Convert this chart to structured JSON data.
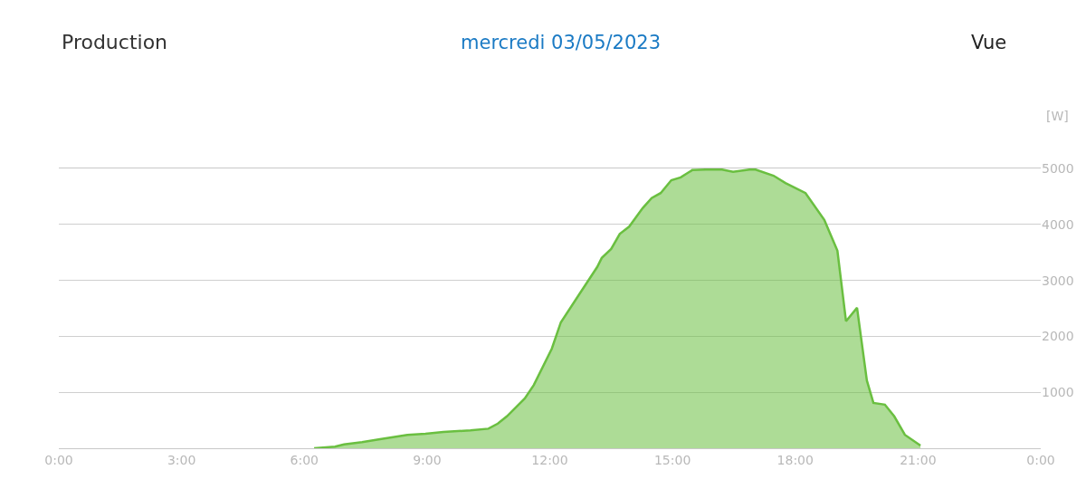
{
  "chart_data": {
    "type": "area",
    "title": "Production",
    "subtitle": "mercredi 03/05/2023",
    "annotations": [
      "Vue"
    ],
    "ylabel": "[W]",
    "x": [
      6.24,
      6.75,
      6.97,
      7.41,
      7.85,
      8.52,
      8.96,
      9.4,
      10.06,
      10.5,
      10.73,
      10.95,
      11.17,
      11.39,
      11.61,
      12.05,
      12.27,
      12.72,
      13.16,
      13.27,
      13.5,
      13.71,
      13.94,
      14.27,
      14.49,
      14.71,
      14.97,
      15.2,
      15.48,
      15.81,
      16.21,
      16.48,
      16.88,
      17.03,
      17.47,
      17.76,
      18.25,
      18.71,
      19.03,
      19.24,
      19.51,
      19.75,
      19.91,
      20.19,
      20.42,
      20.68,
      21.06
    ],
    "series": [
      {
        "color": "#6abf40",
        "values": [
          0,
          30,
          70,
          110,
          160,
          240,
          260,
          290,
          320,
          350,
          440,
          570,
          730,
          890,
          1130,
          1780,
          2250,
          2750,
          3240,
          3400,
          3560,
          3830,
          3960,
          4290,
          4470,
          4560,
          4790,
          4840,
          4970,
          4980,
          4980,
          4940,
          4980,
          4980,
          4870,
          4740,
          4560,
          4080,
          3530,
          2270,
          2510,
          1210,
          810,
          780,
          570,
          240,
          50
        ]
      }
    ],
    "xlim": [
      0,
      24
    ],
    "xticks": [
      {
        "value": 0,
        "label": "0:00"
      },
      {
        "value": 3,
        "label": "3:00"
      },
      {
        "value": 6,
        "label": "6:00"
      },
      {
        "value": 9,
        "label": "9:00"
      },
      {
        "value": 12,
        "label": "12:00"
      },
      {
        "value": 15,
        "label": "15:00"
      },
      {
        "value": 18,
        "label": "18:00"
      },
      {
        "value": 21,
        "label": "21:00"
      },
      {
        "value": 24,
        "label": "0:00"
      }
    ],
    "ylim": [
      0,
      5000
    ],
    "yticks": [
      {
        "value": 0,
        "label": null
      },
      1000,
      2000,
      3000,
      4000,
      5000
    ],
    "grid": "y",
    "marker": "none",
    "line_style": "solid"
  }
}
